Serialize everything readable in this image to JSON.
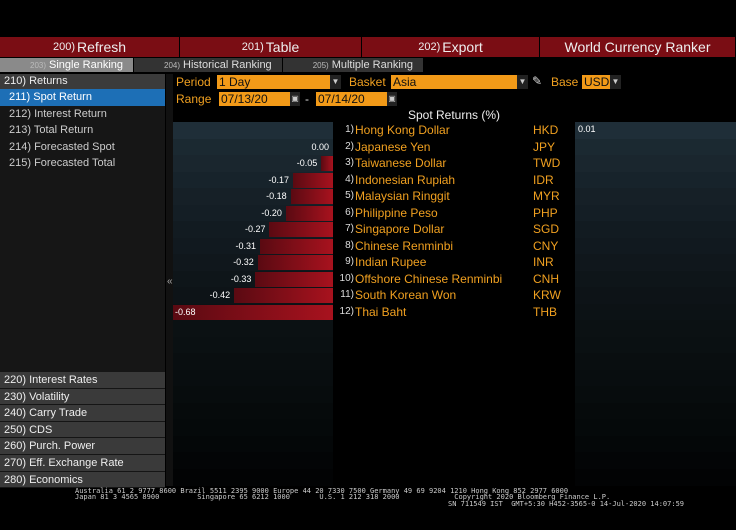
{
  "toolbar": {
    "refresh": {
      "num": "200)",
      "label": "Refresh"
    },
    "table": {
      "num": "201)",
      "label": "Table"
    },
    "export": {
      "num": "202)",
      "label": "Export"
    },
    "title": "World Currency Ranker"
  },
  "tabs": [
    {
      "num": "203)",
      "label": "Single Ranking"
    },
    {
      "num": "204)",
      "label": "Historical Ranking"
    },
    {
      "num": "205)",
      "label": "Multiple Ranking"
    }
  ],
  "leftnav": {
    "header": "210) Returns",
    "items": [
      "211) Spot Return",
      "212) Interest Return",
      "213) Total Return",
      "214) Forecasted Spot",
      "215) Forecasted Total"
    ],
    "bottom": [
      "220) Interest Rates",
      "230) Volatility",
      "240) Carry Trade",
      "250) CDS",
      "260) Purch. Power",
      "270) Eff. Exchange Rate",
      "280) Economics"
    ]
  },
  "filters": {
    "period_label": "Period",
    "period_value": "1 Day",
    "basket_label": "Basket",
    "basket_value": "Asia",
    "base_label": "Base",
    "base_value": "USD",
    "range_label": "Range",
    "range_from": "07/13/20",
    "range_sep": "-",
    "range_to": "07/14/20"
  },
  "table_title": "Spot Returns (%)",
  "base_value_readout": "0.01",
  "chart_data": {
    "type": "bar",
    "title": "Spot Returns (%)",
    "categories": [
      "Hong Kong Dollar",
      "Japanese Yen",
      "Taiwanese Dollar",
      "Indonesian Rupiah",
      "Malaysian Ringgit",
      "Philippine Peso",
      "Singapore Dollar",
      "Chinese Renminbi",
      "Indian Rupee",
      "Offshore Chinese Renminbi",
      "South Korean Won",
      "Thai Baht"
    ],
    "codes": [
      "HKD",
      "JPY",
      "TWD",
      "IDR",
      "MYR",
      "PHP",
      "SGD",
      "CNY",
      "INR",
      "CNH",
      "KRW",
      "THB"
    ],
    "ranks": [
      "1)",
      "2)",
      "3)",
      "4)",
      "5)",
      "6)",
      "7)",
      "8)",
      "9)",
      "10)",
      "11)",
      "12)"
    ],
    "values": [
      0.01,
      0.0,
      -0.05,
      -0.17,
      -0.18,
      -0.2,
      -0.27,
      -0.31,
      -0.32,
      -0.33,
      -0.42,
      -0.68
    ],
    "labels": [
      "0.01",
      "0.00",
      "-0.05",
      "-0.17",
      "-0.18",
      "-0.20",
      "-0.27",
      "-0.31",
      "-0.32",
      "-0.33",
      "-0.42",
      "-0.68"
    ],
    "xlim": [
      -0.68,
      0.01
    ]
  },
  "footer": {
    "line1": "Australia 61 2 9777 8600 Brazil 5511 2395 9000 Europe 44 20 7330 7500 Germany 49 69 9204 1210 Hong Kong 852 2977 6000",
    "line2": "Japan 81 3 4565 8900         Singapore 65 6212 1000       U.S. 1 212 318 2000             Copyright 2020 Bloomberg Finance L.P.",
    "line3": "SN 711549 IST  GMT+5:30 H452-3565-0 14-Jul-2020 14:07:59"
  }
}
